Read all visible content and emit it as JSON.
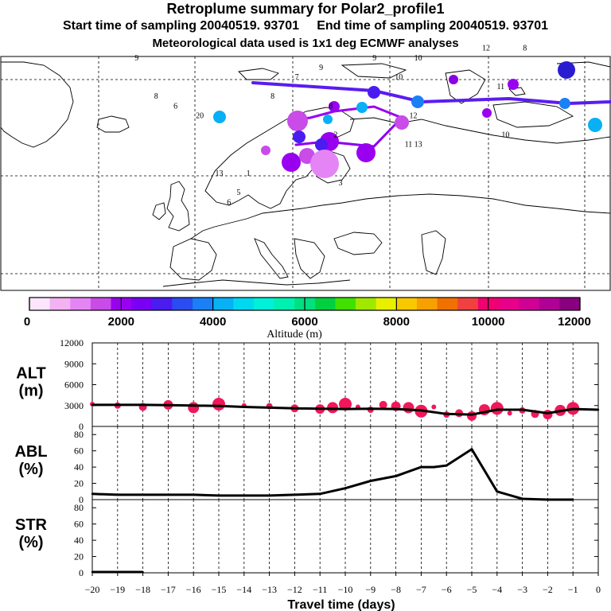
{
  "header": {
    "title": "Retroplume summary for Polar2_profile1",
    "start_label": "Start time of sampling 20040519. 93701",
    "end_label": "End time of sampling 20040519. 93701",
    "met_label": "Meteorological data used is 1x1 deg ECMWF analyses"
  },
  "colorbar": {
    "colors": [
      "#fde6fd",
      "#f3b2f3",
      "#e585f5",
      "#c94be8",
      "#9a00f0",
      "#7a00f5",
      "#4a1cf0",
      "#2a4cf0",
      "#1a80f5",
      "#08b0f5",
      "#00d8f0",
      "#00f0d8",
      "#00f0b0",
      "#00e080",
      "#00d040",
      "#40e000",
      "#a0e800",
      "#e8f000",
      "#f8c800",
      "#f8a000",
      "#f07000",
      "#f04040",
      "#f00070",
      "#e8008a",
      "#d00095",
      "#b00095",
      "#880080"
    ],
    "tick_labels": [
      "0",
      "2000",
      "4000",
      "6000",
      "8000",
      "10000",
      "12000"
    ],
    "tick_values": [
      0,
      2000,
      4000,
      6000,
      8000,
      10000,
      12000
    ],
    "label": "Altitude (m)"
  },
  "map_annotations": [
    {
      "text": "12",
      "lon_lat": [
        60,
        73
      ]
    },
    {
      "text": "11",
      "lon_lat": [
        63,
        69
      ]
    },
    {
      "text": "10",
      "lon_lat": [
        64,
        64
      ]
    },
    {
      "text": "10",
      "lon_lat": [
        42,
        70
      ]
    },
    {
      "text": "10",
      "lon_lat": [
        46,
        72
      ]
    },
    {
      "text": "9",
      "lon_lat": [
        37,
        72
      ]
    },
    {
      "text": "9",
      "lon_lat": [
        26,
        71
      ]
    },
    {
      "text": "8",
      "lon_lat": [
        16,
        68
      ]
    },
    {
      "text": "8",
      "lon_lat": [
        28,
        67
      ]
    },
    {
      "text": "7",
      "lon_lat": [
        21,
        70
      ]
    },
    {
      "text": "3",
      "lon_lat": [
        30,
        59
      ]
    },
    {
      "text": "2",
      "lon_lat": [
        29,
        64
      ]
    },
    {
      "text": "5",
      "lon_lat": [
        9,
        58
      ]
    },
    {
      "text": "1",
      "lon_lat": [
        11,
        60
      ]
    },
    {
      "text": "13",
      "lon_lat": [
        5,
        60
      ]
    },
    {
      "text": "6",
      "lon_lat": [
        7,
        57
      ]
    },
    {
      "text": "20",
      "lon_lat": [
        1,
        66
      ]
    },
    {
      "text": "11",
      "lon_lat": [
        44,
        63
      ]
    },
    {
      "text": "12",
      "lon_lat": [
        45,
        66
      ]
    },
    {
      "text": "13",
      "lon_lat": [
        46,
        63
      ]
    },
    {
      "text": "9",
      "lon_lat": [
        -12,
        72
      ]
    },
    {
      "text": "8",
      "lon_lat": [
        -8,
        68
      ]
    },
    {
      "text": "6",
      "lon_lat": [
        -4,
        67
      ]
    },
    {
      "text": "8",
      "lon_lat": [
        68,
        73
      ]
    }
  ],
  "chart_data": [
    {
      "type": "line",
      "panel": "ALT",
      "ylabel": "ALT\n(m)",
      "ylim": [
        0,
        12000
      ],
      "yticks": [
        0,
        3000,
        6000,
        9000,
        12000
      ],
      "x": [
        -20,
        -19,
        -18,
        -17,
        -16,
        -15,
        -14,
        -13,
        -12,
        -11,
        -10,
        -9,
        -8,
        -7,
        -6,
        -5,
        -4,
        -3,
        -2,
        -1,
        0
      ],
      "values": [
        3100,
        3100,
        3100,
        3050,
        3000,
        2950,
        2800,
        2700,
        2600,
        2550,
        2500,
        2550,
        2500,
        2300,
        1800,
        1700,
        2400,
        2400,
        1900,
        2500,
        2400
      ],
      "scatter_x": [
        -20,
        -19,
        -18,
        -17,
        -16,
        -15,
        -14,
        -13,
        -12,
        -11,
        -10.5,
        -10,
        -9.5,
        -9,
        -8.5,
        -8,
        -7.5,
        -7,
        -6.5,
        -6,
        -5.5,
        -5,
        -4.5,
        -4,
        -3.5,
        -3,
        -2.5,
        -2,
        -1.5,
        -1
      ],
      "scatter_values": [
        3200,
        3000,
        2800,
        3100,
        2700,
        3200,
        3000,
        2900,
        2600,
        2500,
        2700,
        3200,
        2800,
        2400,
        3100,
        2900,
        2700,
        2200,
        2800,
        1700,
        1900,
        1500,
        2400,
        2600,
        1900,
        2300,
        1800,
        1700,
        2300,
        2600
      ]
    },
    {
      "type": "line",
      "panel": "ABL",
      "ylabel": "ABL\n(%)",
      "ylim": [
        0,
        90
      ],
      "yticks": [
        0,
        20,
        40,
        60,
        80
      ],
      "x": [
        -20,
        -19,
        -18,
        -17,
        -16,
        -15,
        -14,
        -13,
        -12,
        -11,
        -10,
        -9,
        -8,
        -7,
        -6.5,
        -6,
        -5,
        -4,
        -3,
        -2,
        -1
      ],
      "values": [
        7,
        6,
        6,
        6,
        6,
        5,
        5,
        5,
        6,
        7,
        14,
        23,
        29,
        40,
        40,
        42,
        62,
        10,
        1,
        0,
        0
      ]
    },
    {
      "type": "line",
      "panel": "STR",
      "ylabel": "STR\n(%)",
      "ylim": [
        0,
        90
      ],
      "yticks": [
        0,
        20,
        40,
        60,
        80
      ],
      "x": [
        -20,
        -18
      ],
      "values": [
        1,
        1
      ],
      "xlabel": "Travel time (days)",
      "xticks": [
        -20,
        -19,
        -18,
        -17,
        -16,
        -15,
        -14,
        -13,
        -12,
        -11,
        -10,
        -9,
        -8,
        -7,
        -6,
        -5,
        -4,
        -3,
        -2,
        -1,
        0
      ]
    }
  ]
}
